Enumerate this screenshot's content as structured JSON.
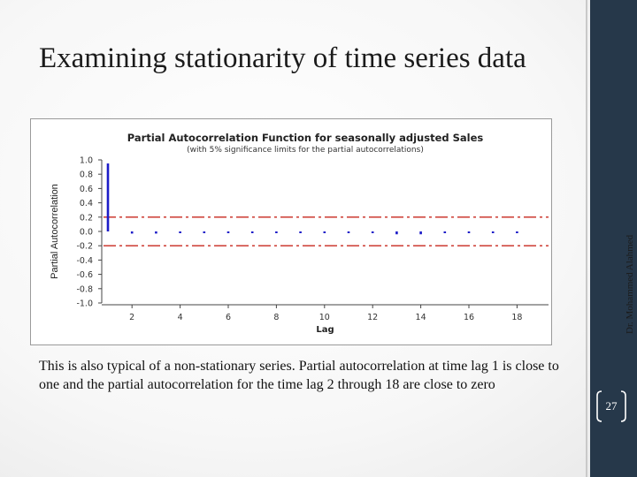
{
  "slide": {
    "title": "Examining stationarity of time series data",
    "body": "This is also typical of a non-stationary series. Partial autocorrelation at time lag 1 is close to one and the partial autocorrelation for the time lag 2 through 18 are close to zero",
    "side_credit": "Dr. Mohammed Alahmed",
    "page_number": "27",
    "colors": {
      "sidebar": "#26384a",
      "bar": "#1c1cc8",
      "limit": "#c8281e"
    }
  },
  "chart_data": {
    "type": "bar",
    "title": "Partial Autocorrelation Function for seasonally adjusted Sales",
    "subtitle": "(with 5% significance limits for the partial autocorrelations)",
    "xlabel": "Lag",
    "ylabel": "Partial Autocorrelation",
    "x": [
      1,
      2,
      3,
      4,
      5,
      6,
      7,
      8,
      9,
      10,
      11,
      12,
      13,
      14,
      15,
      16,
      17,
      18
    ],
    "values": [
      0.95,
      -0.03,
      -0.03,
      -0.02,
      -0.01,
      -0.01,
      -0.01,
      -0.01,
      0.0,
      -0.01,
      -0.02,
      -0.02,
      -0.04,
      -0.04,
      -0.02,
      -0.01,
      -0.01,
      -0.01
    ],
    "ylim": [
      -1.0,
      1.0
    ],
    "ytick_labels": [
      "1.0",
      "0.8",
      "0.6",
      "0.4",
      "0.2",
      "0.0",
      "-0.2",
      "-0.4",
      "-0.6",
      "-0.8",
      "-1.0"
    ],
    "xtick_labels": [
      "2",
      "4",
      "6",
      "8",
      "10",
      "12",
      "14",
      "16",
      "18"
    ],
    "significance_limits": [
      0.2,
      -0.2
    ],
    "grid": false
  }
}
